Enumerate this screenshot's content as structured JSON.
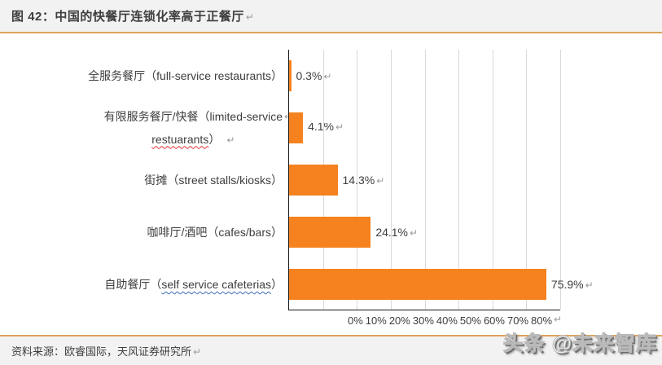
{
  "header": {
    "title": "图 42：中国的快餐厅连锁化率高于正餐厅"
  },
  "marks": {
    "line_break": "↵"
  },
  "chart_data": {
    "type": "bar",
    "orientation": "horizontal",
    "title": "中国的快餐厅连锁化率高于正餐厅",
    "categories": [
      "全服务餐厅（full-service restaurants）",
      "有限服务餐厅/快餐（limited-service restuarants）",
      "街摊（street stalls/kiosks）",
      "咖啡厅/酒吧（cafes/bars）",
      "自助餐厅（self service cafeterias）"
    ],
    "values": [
      0.3,
      4.1,
      14.3,
      24.1,
      75.9
    ],
    "data_labels": [
      "0.3%",
      "4.1%",
      "14.3%",
      "24.1%",
      "75.9%"
    ],
    "x_ticks": [
      "0%",
      "10%",
      "20%",
      "30%",
      "40%",
      "50%",
      "60%",
      "70%",
      "80%"
    ],
    "xlim": [
      0,
      80
    ],
    "grid": true,
    "legend": false,
    "xlabel": "",
    "ylabel": ""
  },
  "cat_display": {
    "row1": "全服务餐厅（full-service restaurants）",
    "row2_line1": "有限服务餐厅/快餐（limited-service",
    "row2_word": "restuarants",
    "row2_close": "）",
    "row2_space": " ",
    "row3": "街摊（street stalls/kiosks）",
    "row4": "咖啡厅/酒吧（cafes/bars）",
    "row5_prefix": "自助餐厅（",
    "row5_phrase": "self service cafeterias",
    "row5_close": "）"
  },
  "footer": {
    "source": "资料来源：欧睿国际，天风证券研究所",
    "watermark": "头条 @未来智库"
  },
  "colors": {
    "bar_color": "#F5821F",
    "accent_line": "#DDA35C",
    "grid_line": "#D9D9D9",
    "axis_line": "#1A1A1A",
    "panel_bg": "#F2F2F2",
    "text_main": "#3E3E3E",
    "mark_gray": "#9B9B9B",
    "spell_red": "#E03030",
    "grammar_blue": "#3B6FB5",
    "watermark_fill": "#FFFFFF",
    "watermark_shadow": "#6E6E6E"
  }
}
